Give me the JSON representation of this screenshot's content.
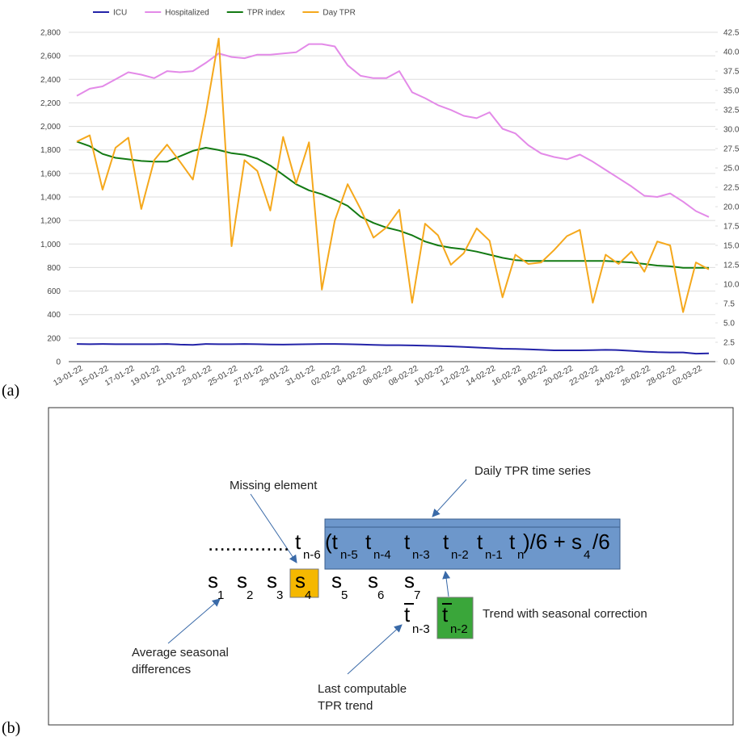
{
  "chart_data": {
    "type": "line",
    "categories": [
      "13-01-22",
      null,
      "15-01-22",
      null,
      "17-01-22",
      null,
      "19-01-22",
      null,
      "21-01-22",
      null,
      "23-01-22",
      null,
      "25-01-22",
      null,
      "27-01-22",
      null,
      "29-01-22",
      null,
      "31-01-22",
      null,
      "02-02-22",
      null,
      "04-02-22",
      null,
      "06-02-22",
      null,
      "08-02-22",
      null,
      "10-02-22",
      null,
      "12-02-22",
      null,
      "14-02-22",
      null,
      "16-02-22",
      null,
      "18-02-22",
      null,
      "20-02-22",
      null,
      "22-02-22",
      null,
      "24-02-22",
      null,
      "26-02-22",
      null,
      "28-02-22",
      null,
      "02-03-22",
      null
    ],
    "series": [
      {
        "name": "ICU",
        "color": "#2323a8",
        "values": [
          150,
          148,
          150,
          148,
          148,
          148,
          148,
          150,
          145,
          143,
          150,
          148,
          148,
          150,
          148,
          146,
          145,
          147,
          148,
          150,
          150,
          148,
          146,
          143,
          140,
          140,
          138,
          135,
          133,
          130,
          125,
          120,
          115,
          110,
          108,
          105,
          100,
          96,
          96,
          96,
          98,
          100,
          98,
          92,
          85,
          80,
          78,
          78,
          68,
          70
        ]
      },
      {
        "name": "Hospitalized",
        "color": "#e38ae8",
        "values": [
          2260,
          2320,
          2340,
          2400,
          2460,
          2440,
          2410,
          2470,
          2460,
          2470,
          2540,
          2620,
          2590,
          2580,
          2610,
          2610,
          2620,
          2630,
          2700,
          2700,
          2680,
          2520,
          2430,
          2410,
          2410,
          2470,
          2290,
          2240,
          2180,
          2140,
          2090,
          2070,
          2120,
          1980,
          1940,
          1840,
          1770,
          1740,
          1720,
          1760,
          1700,
          1630,
          1560,
          1490,
          1410,
          1400,
          1430,
          1360,
          1280,
          1230
        ]
      },
      {
        "name": "TPR index",
        "color": "#137a13",
        "axis": "y2",
        "values": [
          28.4,
          27.8,
          26.8,
          26.3,
          26.1,
          25.9,
          25.8,
          25.8,
          26.5,
          27.2,
          27.6,
          27.3,
          26.9,
          26.7,
          26.2,
          25.3,
          24.1,
          22.9,
          22.1,
          21.6,
          20.9,
          20.1,
          18.7,
          17.9,
          17.3,
          16.9,
          16.3,
          15.5,
          15.0,
          14.7,
          14.5,
          14.2,
          13.8,
          13.4,
          13.1,
          13.0,
          13.0,
          13.0,
          13.0,
          13.0,
          13.0,
          13.0,
          12.9,
          12.8,
          12.6,
          12.4,
          12.3,
          12.1,
          12.1,
          12.1
        ]
      },
      {
        "name": "Day TPR",
        "color": "#f5a81c",
        "axis": "y2",
        "values": [
          28.4,
          29.2,
          22.2,
          27.6,
          28.9,
          19.7,
          26.0,
          28.0,
          25.8,
          23.5,
          32.0,
          41.7,
          14.9,
          26.0,
          24.6,
          19.5,
          29.0,
          23.0,
          28.3,
          9.3,
          18.2,
          22.9,
          19.7,
          16.0,
          17.3,
          19.6,
          7.6,
          17.8,
          16.3,
          12.5,
          14.0,
          17.2,
          15.6,
          8.3,
          13.8,
          12.6,
          12.8,
          14.4,
          16.2,
          17.0,
          7.6,
          13.8,
          12.6,
          14.2,
          11.6,
          15.5,
          15.0,
          6.4,
          12.8,
          11.9
        ]
      }
    ],
    "ylim": [
      0,
      2800
    ],
    "yticks": [
      0,
      200,
      400,
      600,
      800,
      {
        "value": 1000,
        "label": "1,000"
      },
      {
        "value": 1200,
        "label": "1,200"
      },
      {
        "value": 1400,
        "label": "1,400"
      },
      {
        "value": 1600,
        "label": "1,600"
      },
      {
        "value": 1800,
        "label": "1,800"
      },
      {
        "value": 2000,
        "label": "2,000"
      },
      {
        "value": 2200,
        "label": "2,200"
      },
      {
        "value": 2400,
        "label": "2,400"
      },
      {
        "value": 2600,
        "label": "2,600"
      },
      {
        "value": 2800,
        "label": "2,800"
      }
    ],
    "y2lim": [
      0,
      42.5
    ],
    "y2ticks": [
      {
        "value": 0,
        "label": "0.0"
      },
      2.5,
      {
        "value": 5,
        "label": "5.0"
      },
      7.5,
      {
        "value": 10,
        "label": "10.0"
      },
      12.5,
      {
        "value": 15,
        "label": "15.0"
      },
      17.5,
      {
        "value": 20,
        "label": "20.0"
      },
      22.5,
      {
        "value": 25,
        "label": "25.0"
      },
      27.5,
      {
        "value": 30,
        "label": "30.0"
      },
      32.5,
      {
        "value": 35,
        "label": "35.0"
      },
      37.5,
      {
        "value": 40,
        "label": "40.0"
      },
      42.5
    ],
    "grid": true,
    "legend": "top-left"
  },
  "panel_labels": [
    "(a)",
    "(b)"
  ],
  "diagram": {
    "missing": "Missing element",
    "daily": "Daily TPR time series",
    "trend": "Trend with seasonal correction",
    "average": [
      "Average seasonal",
      "differences"
    ],
    "last": [
      "Last computable",
      "TPR trend"
    ],
    "dots": "..............",
    "terms": [
      {
        "base": "t",
        "sub": "n-6"
      },
      {
        "base": "(t",
        "sub": "n-5"
      },
      {
        "base": "t",
        "sub": "n-4"
      },
      {
        "base": "t",
        "sub": "n-3"
      },
      {
        "base": "t",
        "sub": "n-2"
      },
      {
        "base": "t",
        "sub": "n-1"
      },
      {
        "base": "t",
        "sub": "n"
      },
      {
        "base": ")/6 + s",
        "sub": "4"
      }
    ],
    "tail": "/6",
    "seasonal": [
      {
        "base": "s",
        "sub": "1"
      },
      {
        "base": "s",
        "sub": "2"
      },
      {
        "base": "s",
        "sub": "3"
      },
      {
        "base": "s",
        "sub": "4"
      },
      {
        "base": "s",
        "sub": "5"
      },
      {
        "base": "s",
        "sub": "6"
      },
      {
        "base": "s",
        "sub": "7"
      }
    ],
    "trends": [
      {
        "base": "t",
        "sub": "n-3"
      },
      {
        "base": "t",
        "sub": "n-2"
      }
    ]
  }
}
